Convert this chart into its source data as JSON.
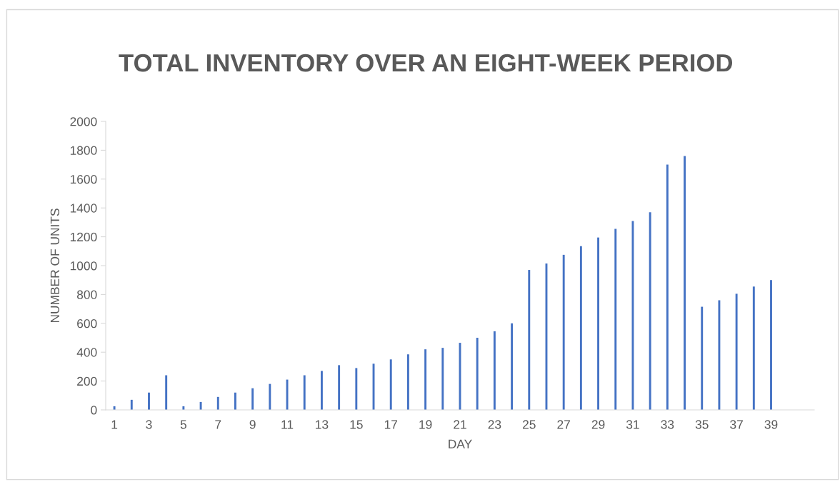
{
  "chart_data": {
    "type": "bar",
    "title": "TOTAL INVENTORY OVER AN EIGHT-WEEK PERIOD",
    "xlabel": "DAY",
    "ylabel": "NUMBER OF UNITS",
    "categories": [
      "1",
      null,
      "3",
      null,
      "5",
      null,
      "7",
      null,
      "9",
      null,
      "11",
      null,
      "13",
      null,
      "15",
      null,
      "17",
      null,
      "19",
      null,
      "21",
      null,
      "23",
      null,
      "25",
      null,
      "27",
      null,
      "29",
      null,
      "31",
      null,
      "33",
      null,
      "35",
      null,
      "37",
      null,
      "39",
      null,
      null
    ],
    "values": [
      25,
      70,
      120,
      240,
      25,
      55,
      90,
      120,
      150,
      180,
      210,
      240,
      270,
      310,
      290,
      320,
      350,
      385,
      420,
      430,
      465,
      500,
      545,
      600,
      970,
      1015,
      1075,
      1135,
      1195,
      1255,
      1310,
      1370,
      1700,
      1760,
      715,
      760,
      805,
      855,
      900,
      null,
      null
    ],
    "color": "#4472c4",
    "ylim": [
      0,
      2000
    ],
    "yticks": [
      0,
      200,
      400,
      600,
      800,
      1000,
      1200,
      1400,
      1600,
      1800,
      2000
    ],
    "grid": false,
    "legend": false
  }
}
